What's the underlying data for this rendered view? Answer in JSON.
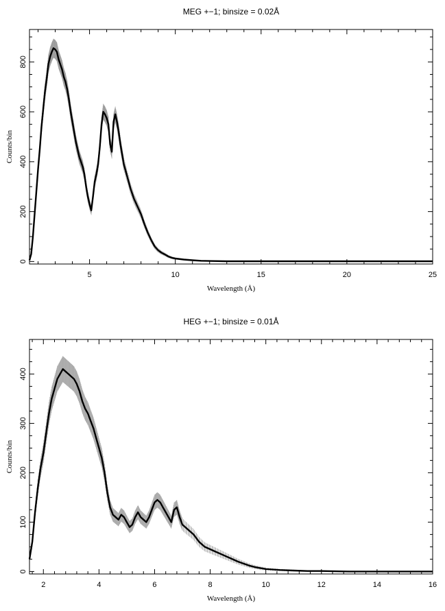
{
  "chart_data": [
    {
      "type": "line",
      "title": "MEG +−1; binsize = 0.02Å",
      "xlabel": "Wavelength (Å)",
      "ylabel": "Counts/bin",
      "xlim": [
        1.5,
        25
      ],
      "ylim": [
        -10,
        930
      ],
      "xticks": [
        5,
        10,
        15,
        20,
        25
      ],
      "yticks": [
        0,
        200,
        400,
        600,
        800
      ],
      "series": [
        {
          "x": [
            1.5,
            1.6,
            1.7,
            1.8,
            1.9,
            2.0,
            2.1,
            2.2,
            2.3,
            2.4,
            2.5,
            2.6,
            2.7,
            2.8,
            2.9,
            3.0,
            3.1,
            3.2,
            3.3,
            3.4,
            3.5,
            3.6,
            3.7,
            3.8,
            3.9,
            4.0,
            4.1,
            4.2,
            4.3,
            4.4,
            4.5,
            4.6,
            4.7,
            4.8,
            4.9,
            5.0,
            5.1,
            5.2,
            5.3,
            5.4,
            5.5,
            5.6,
            5.7,
            5.8,
            5.9,
            6.0,
            6.1,
            6.2,
            6.3,
            6.4,
            6.5,
            6.6,
            6.7,
            6.8,
            6.9,
            7.0,
            7.2,
            7.4,
            7.6,
            7.8,
            8.0,
            8.2,
            8.4,
            8.6,
            8.8,
            9.0,
            9.2,
            9.4,
            9.6,
            9.8,
            10.0,
            10.5,
            11.0,
            11.5,
            12.0,
            13.0,
            14.0,
            15.0,
            17.0,
            20.0,
            25.0
          ],
          "y": [
            5,
            30,
            100,
            190,
            280,
            370,
            450,
            540,
            610,
            680,
            730,
            790,
            820,
            840,
            855,
            850,
            840,
            810,
            790,
            770,
            740,
            720,
            690,
            650,
            600,
            560,
            520,
            480,
            450,
            420,
            400,
            380,
            350,
            300,
            260,
            230,
            205,
            260,
            320,
            350,
            390,
            460,
            550,
            600,
            590,
            575,
            550,
            470,
            440,
            560,
            590,
            560,
            520,
            470,
            430,
            390,
            340,
            290,
            250,
            220,
            190,
            150,
            115,
            85,
            60,
            45,
            35,
            28,
            20,
            15,
            12,
            8,
            5,
            3,
            2,
            1,
            1,
            1,
            1,
            1,
            1
          ]
        }
      ]
    },
    {
      "type": "line",
      "title": "HEG +−1; binsize = 0.01Å",
      "xlabel": "Wavelength (Å)",
      "ylabel": "Counts/bin",
      "xlim": [
        1.5,
        16
      ],
      "ylim": [
        -5,
        470
      ],
      "xticks": [
        2,
        4,
        6,
        8,
        10,
        12,
        14,
        16
      ],
      "yticks": [
        0,
        100,
        200,
        300,
        400
      ],
      "series": [
        {
          "x": [
            1.5,
            1.6,
            1.7,
            1.8,
            1.9,
            2.0,
            2.1,
            2.2,
            2.3,
            2.4,
            2.5,
            2.6,
            2.7,
            2.8,
            2.9,
            3.0,
            3.1,
            3.2,
            3.3,
            3.4,
            3.5,
            3.6,
            3.7,
            3.8,
            3.9,
            4.0,
            4.1,
            4.2,
            4.3,
            4.4,
            4.5,
            4.6,
            4.7,
            4.8,
            4.9,
            5.0,
            5.1,
            5.2,
            5.3,
            5.4,
            5.5,
            5.6,
            5.7,
            5.8,
            5.9,
            6.0,
            6.1,
            6.2,
            6.3,
            6.4,
            6.5,
            6.6,
            6.7,
            6.8,
            6.9,
            7.0,
            7.2,
            7.4,
            7.6,
            7.8,
            8.0,
            8.2,
            8.4,
            8.6,
            8.8,
            9.0,
            9.2,
            9.4,
            9.6,
            9.8,
            10.0,
            10.5,
            11.0,
            11.5,
            12.0,
            13.0,
            14.0,
            15.0,
            16.0
          ],
          "y": [
            25,
            60,
            120,
            170,
            210,
            240,
            280,
            320,
            350,
            370,
            390,
            400,
            410,
            405,
            400,
            395,
            390,
            380,
            365,
            345,
            330,
            320,
            305,
            290,
            270,
            250,
            230,
            200,
            160,
            130,
            115,
            110,
            105,
            115,
            110,
            100,
            90,
            95,
            110,
            120,
            110,
            105,
            100,
            110,
            125,
            140,
            145,
            140,
            130,
            120,
            110,
            100,
            125,
            130,
            110,
            95,
            85,
            75,
            60,
            50,
            45,
            40,
            35,
            30,
            25,
            20,
            16,
            12,
            9,
            7,
            5,
            3,
            2,
            1,
            1,
            0,
            0,
            0,
            0
          ]
        }
      ]
    }
  ]
}
